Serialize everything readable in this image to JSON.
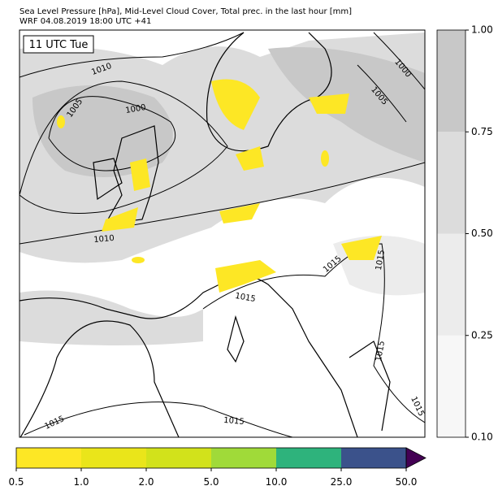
{
  "header": {
    "title_lines": [
      "Sea Level Pressure [hPa], Mid-Level Cloud Cover, Total prec. in the last hour [mm]",
      "WRF 04.08.2019 18:00 UTC +41"
    ]
  },
  "map": {
    "time_label": "11 UTC Tue",
    "contour_labels": [
      "1010",
      "1005",
      "1000",
      "1000",
      "1005",
      "1010",
      "1015",
      "1015",
      "1015",
      "1015",
      "1015",
      "1015",
      "1015"
    ]
  },
  "cloud_colorbar": {
    "colors": [
      "#f7f7f7",
      "#ececec",
      "#dcdcdc",
      "#c8c8c8"
    ],
    "ticks": [
      {
        "value": 0.1,
        "label": "0.10"
      },
      {
        "value": 0.25,
        "label": "0.25"
      },
      {
        "value": 0.5,
        "label": "0.50"
      },
      {
        "value": 0.75,
        "label": "0.75"
      },
      {
        "value": 1,
        "label": "1.00"
      }
    ]
  },
  "precip_colorbar": {
    "colors": [
      "#fde725",
      "#eae51a",
      "#d2e21b",
      "#a0da39",
      "#2eb37c",
      "#3b528b",
      "#440154"
    ],
    "ticks": [
      0.5,
      {
        "value": 1,
        "label": "1.0"
      },
      {
        "value": 2,
        "label": "2.0"
      },
      {
        "value": 5,
        "label": "5.0"
      },
      {
        "value": 10,
        "label": "10.0"
      },
      {
        "value": 25,
        "label": "25.0"
      },
      {
        "value": 50,
        "label": "50.0"
      }
    ]
  }
}
